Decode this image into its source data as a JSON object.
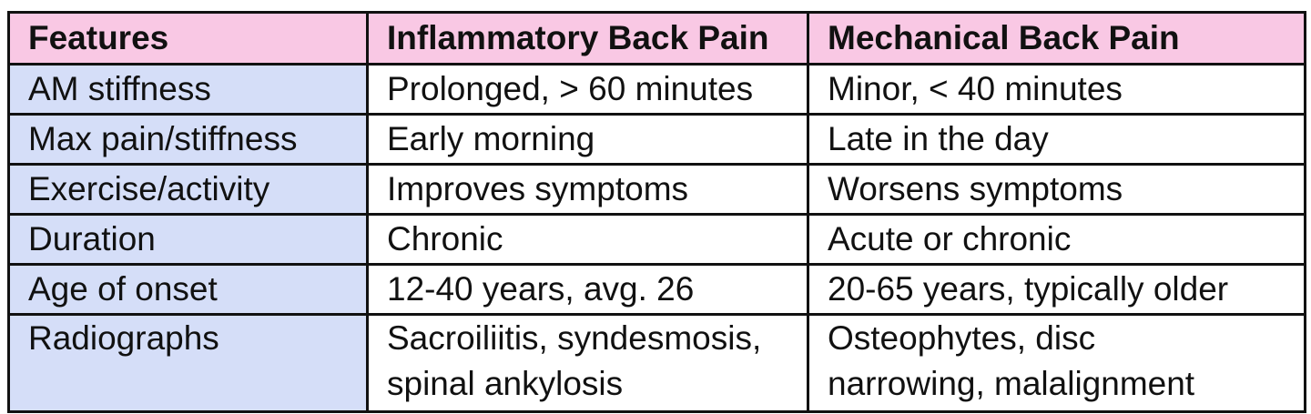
{
  "colors": {
    "header_bg": "#f9c8e4",
    "feature_col_bg": "#d5def8",
    "body_bg": "#ffffff",
    "border": "#111111",
    "text": "#111111"
  },
  "table": {
    "headers": [
      "Features",
      "Inflammatory Back Pain",
      "Mechanical Back Pain"
    ],
    "rows": [
      {
        "feature": "AM stiffness",
        "inflammatory": "Prolonged, > 60 minutes",
        "mechanical": "Minor, < 40 minutes"
      },
      {
        "feature": "Max pain/stiffness",
        "inflammatory": "Early morning",
        "mechanical": "Late in the day"
      },
      {
        "feature": "Exercise/activity",
        "inflammatory": "Improves symptoms",
        "mechanical": "Worsens symptoms"
      },
      {
        "feature": "Duration",
        "inflammatory": "Chronic",
        "mechanical": "Acute or chronic"
      },
      {
        "feature": "Age of onset",
        "inflammatory": "12-40 years, avg. 26",
        "mechanical": "20-65 years, typically older"
      },
      {
        "feature": "Radiographs",
        "inflammatory": "Sacroiliitis, syndesmosis,\nspinal ankylosis",
        "mechanical": "Osteophytes, disc\nnarrowing, malalignment"
      }
    ]
  }
}
